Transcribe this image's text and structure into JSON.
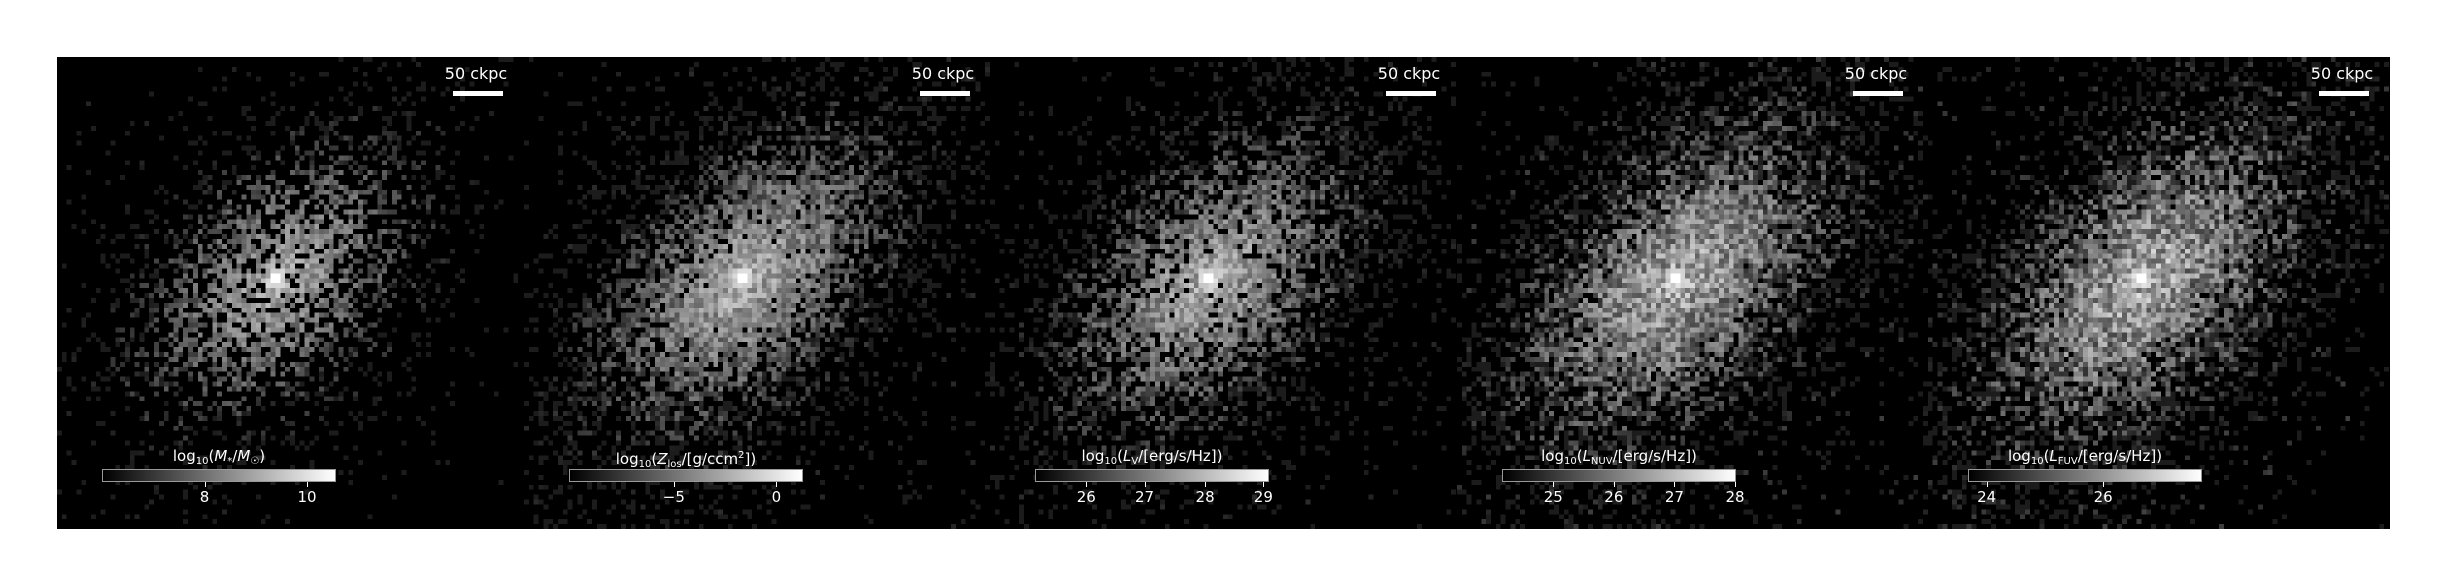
{
  "panels": [
    {
      "scalebar": "50 ckpc",
      "colorbar_label_html": "log<sub>10</sub>(<i>M</i><sub>*</sub>/<i>M</i><sub>☉</sub>)",
      "ticks": [
        {
          "label": "8",
          "frac": 0.44
        },
        {
          "label": "10",
          "frac": 0.88
        }
      ],
      "image": {
        "spread": 0.55,
        "core": 1.0,
        "noise": 0.45,
        "coverage": 0.35
      }
    },
    {
      "scalebar": "50 ckpc",
      "colorbar_label_html": "log<sub>10</sub>(<i>Z</i><sub>los</sub>/[g/ccm<sup>2</sup>])",
      "ticks": [
        {
          "label": "−5",
          "frac": 0.45
        },
        {
          "label": "0",
          "frac": 0.89
        }
      ],
      "image": {
        "spread": 0.85,
        "core": 1.0,
        "noise": 0.55,
        "coverage": 0.6
      }
    },
    {
      "scalebar": "50 ckpc",
      "colorbar_label_html": "log<sub>10</sub>(<i>L</i><sub>V</sub>/[erg/s/Hz])",
      "ticks": [
        {
          "label": "26",
          "frac": 0.22
        },
        {
          "label": "27",
          "frac": 0.47
        },
        {
          "label": "28",
          "frac": 0.73
        },
        {
          "label": "29",
          "frac": 0.98
        }
      ],
      "image": {
        "spread": 0.8,
        "core": 0.95,
        "noise": 0.55,
        "coverage": 0.55
      }
    },
    {
      "scalebar": "50 ckpc",
      "colorbar_label_html": "log<sub>10</sub>(<i>L</i><sub>NUV</sub>/[erg/s/Hz])",
      "ticks": [
        {
          "label": "25",
          "frac": 0.22
        },
        {
          "label": "26",
          "frac": 0.48
        },
        {
          "label": "27",
          "frac": 0.74
        },
        {
          "label": "28",
          "frac": 1.0
        }
      ],
      "image": {
        "spread": 1.0,
        "core": 0.85,
        "noise": 0.75,
        "coverage": 0.7
      }
    },
    {
      "scalebar": "50 ckpc",
      "colorbar_label_html": "log<sub>10</sub>(<i>L</i><sub>FUV</sub>/[erg/s/Hz])",
      "ticks": [
        {
          "label": "24",
          "frac": 0.08
        },
        {
          "label": "26",
          "frac": 0.58
        }
      ],
      "image": {
        "spread": 1.0,
        "core": 0.8,
        "noise": 0.8,
        "coverage": 0.7
      }
    }
  ]
}
